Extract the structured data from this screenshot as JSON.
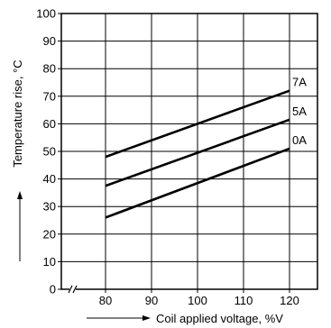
{
  "chart_data": {
    "type": "line",
    "xlabel": "Coil applied voltage, %V",
    "ylabel": "Temperature rise, °C",
    "xlim": [
      70,
      140
    ],
    "ylim": [
      0,
      100
    ],
    "x_ticks": [
      80,
      90,
      100,
      110,
      120
    ],
    "y_ticks": [
      0,
      10,
      20,
      30,
      40,
      50,
      60,
      70,
      80,
      90,
      100
    ],
    "x_axis_break": true,
    "grid": true,
    "series": [
      {
        "name": "7A",
        "x": [
          80,
          120
        ],
        "y": [
          48,
          72
        ]
      },
      {
        "name": "5A",
        "x": [
          80,
          120
        ],
        "y": [
          37.5,
          61.5
        ]
      },
      {
        "name": "0A",
        "x": [
          80,
          120
        ],
        "y": [
          26,
          51
        ]
      }
    ]
  }
}
